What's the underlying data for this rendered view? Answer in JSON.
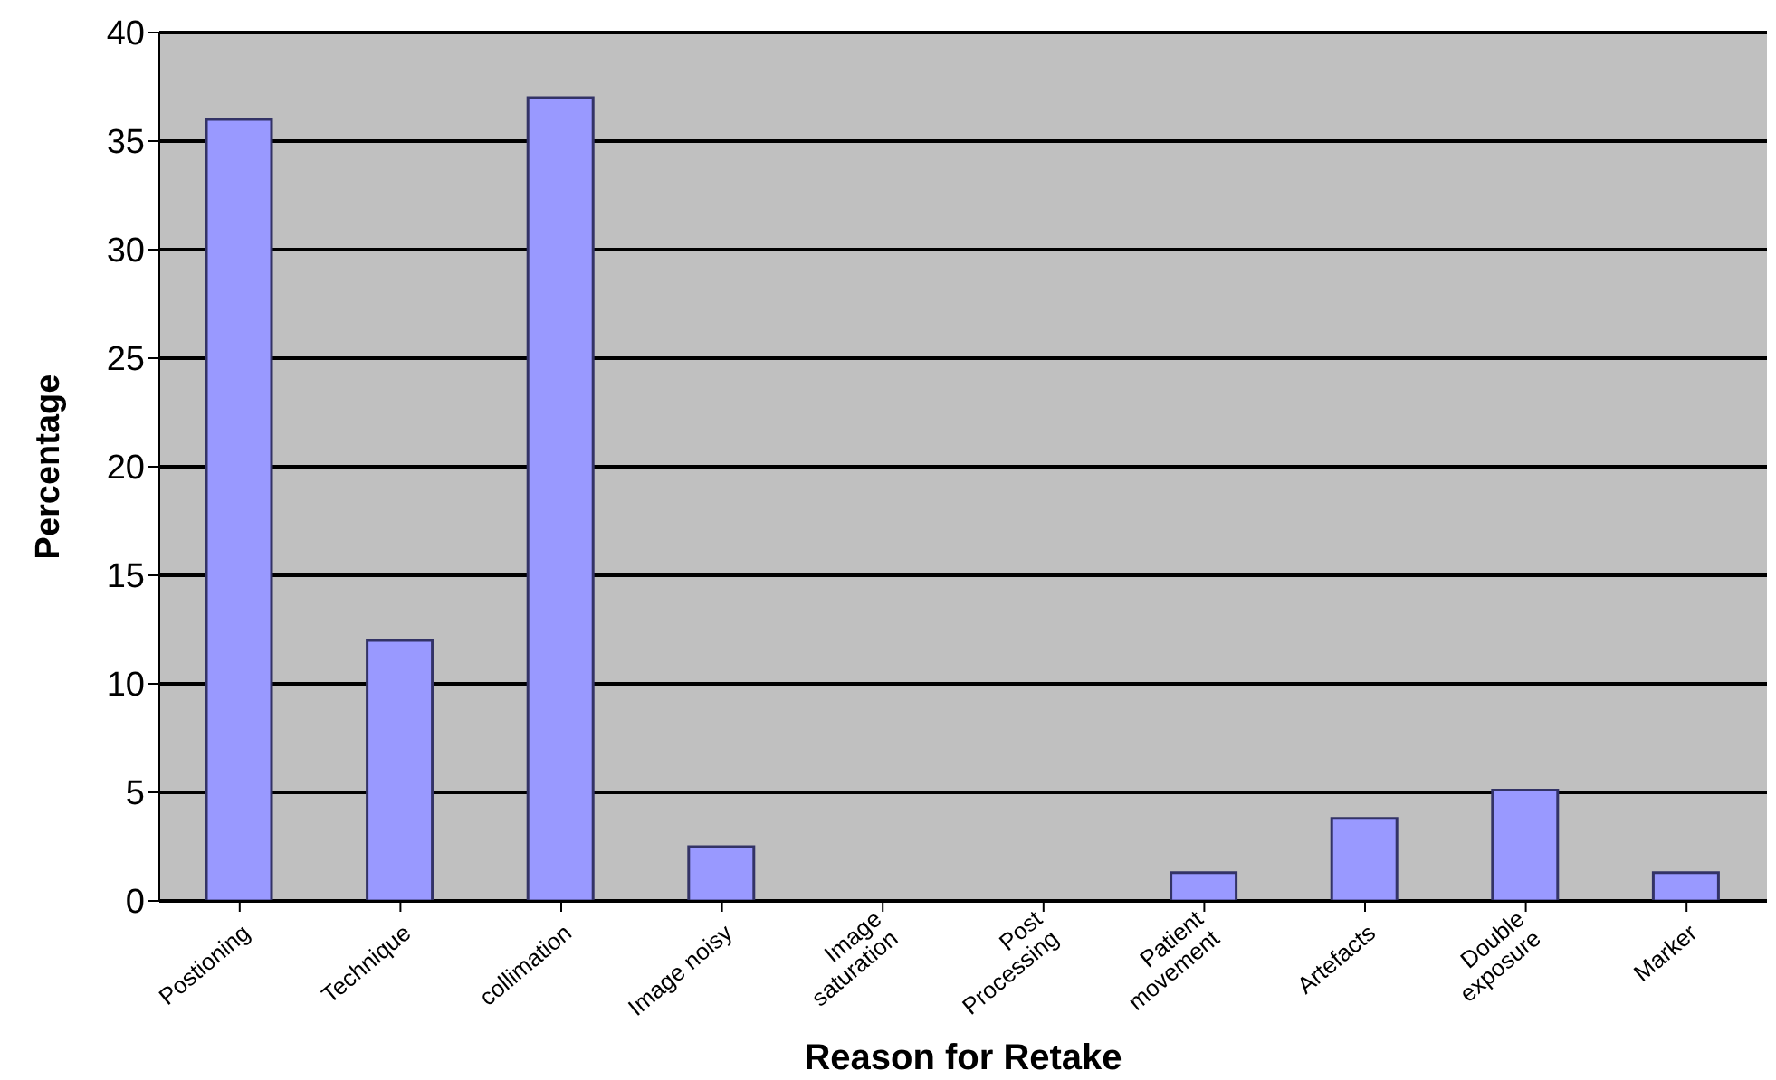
{
  "chart_data": {
    "type": "bar",
    "xlabel": "Reason for Retake",
    "ylabel": "Percentage",
    "categories": [
      "Postioning",
      "Technique",
      "collimation",
      "Image noisy",
      "Image\nsaturation",
      "Post\nProcessing",
      "Patient\nmovement",
      "Artefacts",
      "Double\nexposure",
      "Marker"
    ],
    "values": [
      36,
      12,
      37,
      2.5,
      0,
      0,
      1.3,
      3.8,
      5.1,
      1.3
    ],
    "color": "#9999ff",
    "ylim": [
      0,
      40
    ],
    "yticks": [
      0,
      5,
      10,
      15,
      20,
      25,
      30,
      35,
      40
    ],
    "grid": "y"
  }
}
